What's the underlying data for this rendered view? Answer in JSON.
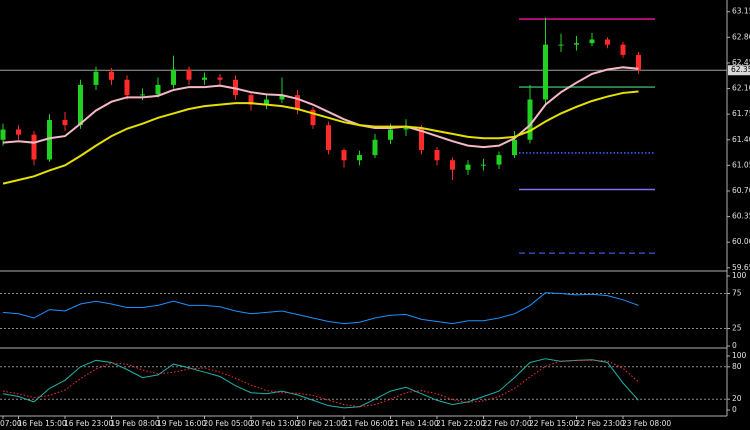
{
  "chart_data": [
    {
      "type": "candlestick",
      "categories": [
        "07:00",
        "16 Feb 15:00",
        null,
        null,
        "16 Feb 23:00",
        null,
        null,
        "19 Feb 08:00",
        null,
        null,
        "19 Feb 16:00",
        null,
        null,
        "20 Feb 05:00",
        null,
        null,
        "20 Feb 13:00",
        null,
        null,
        "20 Feb 21:00",
        null,
        null,
        "21 Feb 06:00",
        null,
        null,
        "21 Feb 14:00",
        null,
        null,
        "21 Feb 22:00",
        null,
        null,
        "22 Feb 07:00",
        null,
        null,
        "22 Feb 15:00",
        null,
        null,
        "22 Feb 23:00",
        null,
        null,
        "23 Feb 08:00",
        null
      ],
      "open": [
        61.4,
        61.54,
        61.47,
        61.13,
        61.67,
        61.6,
        62.15,
        62.33,
        62.22,
        62.01,
        62.02,
        62.15,
        62.36,
        62.22,
        62.25,
        62.22,
        62.01,
        61.88,
        61.95,
        62.01,
        61.81,
        61.6,
        61.26,
        61.12,
        61.19,
        61.4,
        61.54,
        61.56,
        61.26,
        61.12,
        60.99,
        61.06,
        61.06,
        61.19,
        61.4,
        61.95,
        62.7,
        62.7,
        62.72,
        62.77,
        62.7,
        62.56
      ],
      "high": [
        61.62,
        61.6,
        61.52,
        61.75,
        61.78,
        62.22,
        62.4,
        62.38,
        62.28,
        62.1,
        62.25,
        62.55,
        62.4,
        62.32,
        62.3,
        62.28,
        62.05,
        62.02,
        62.25,
        62.08,
        61.85,
        61.65,
        61.28,
        61.25,
        61.48,
        61.62,
        61.68,
        61.6,
        61.3,
        61.16,
        61.12,
        61.14,
        61.24,
        61.52,
        62.15,
        63.07,
        62.85,
        62.82,
        62.86,
        62.8,
        62.74,
        62.6
      ],
      "low": [
        61.32,
        61.4,
        61.05,
        61.1,
        61.52,
        61.55,
        62.08,
        62.15,
        61.95,
        61.94,
        61.98,
        62.1,
        62.15,
        62.15,
        62.12,
        61.95,
        61.8,
        61.82,
        61.9,
        61.75,
        61.55,
        61.2,
        61.02,
        61.05,
        61.15,
        61.34,
        61.45,
        61.2,
        61.05,
        60.85,
        60.92,
        60.98,
        61.0,
        61.15,
        61.35,
        61.88,
        62.6,
        62.62,
        62.68,
        62.65,
        62.52,
        62.3
      ],
      "close": [
        61.54,
        61.47,
        61.13,
        61.67,
        61.6,
        62.15,
        62.33,
        62.22,
        62.01,
        62.02,
        62.15,
        62.36,
        62.22,
        62.25,
        62.22,
        62.01,
        61.88,
        61.95,
        62.01,
        61.81,
        61.6,
        61.26,
        61.12,
        61.19,
        61.4,
        61.54,
        61.56,
        61.26,
        61.12,
        60.99,
        61.06,
        61.06,
        61.19,
        61.4,
        61.95,
        62.7,
        62.7,
        62.72,
        62.77,
        62.7,
        62.56,
        62.35
      ],
      "up_color": "#22d022",
      "down_color": "#ff2a2a",
      "overlays": [
        {
          "color": "#f5b8c4",
          "values": [
            61.36,
            61.38,
            61.36,
            61.42,
            61.45,
            61.62,
            61.8,
            61.92,
            61.98,
            61.98,
            62.0,
            62.08,
            62.12,
            62.12,
            62.14,
            62.1,
            62.05,
            62.02,
            62.01,
            61.96,
            61.88,
            61.78,
            61.68,
            61.6,
            61.56,
            61.56,
            61.58,
            61.52,
            61.45,
            61.38,
            61.32,
            61.3,
            61.32,
            61.42,
            61.6,
            61.88,
            62.05,
            62.18,
            62.3,
            62.36,
            62.39,
            62.37
          ]
        },
        {
          "color": "#e6e000",
          "values": [
            60.8,
            60.85,
            60.9,
            60.98,
            61.05,
            61.18,
            61.32,
            61.45,
            61.55,
            61.62,
            61.7,
            61.76,
            61.82,
            61.86,
            61.88,
            61.9,
            61.9,
            61.88,
            61.86,
            61.82,
            61.76,
            61.7,
            61.64,
            61.6,
            61.58,
            61.58,
            61.58,
            61.56,
            61.52,
            61.48,
            61.44,
            61.42,
            61.42,
            61.44,
            61.52,
            61.65,
            61.76,
            61.85,
            61.93,
            61.99,
            62.04,
            62.06
          ]
        }
      ],
      "levels": [
        {
          "value": 63.05,
          "color": "#d0108f",
          "style": "solid"
        },
        {
          "value": 62.12,
          "color": "#2e9b57",
          "style": "solid"
        },
        {
          "value": 61.22,
          "color": "#3060ff",
          "style": "dotted"
        },
        {
          "value": 60.72,
          "color": "#8a6cf0",
          "style": "solid"
        },
        {
          "value": 59.85,
          "color": "#2848a8",
          "style": "dashed"
        }
      ],
      "last_price": 62.35,
      "ylim": [
        59.62,
        63.31
      ],
      "yticks": [
        63.15,
        {
          "value": 62.8,
          "label": "62.80"
        },
        62.45,
        {
          "value": 62.1,
          "label": "62.10"
        },
        61.75,
        {
          "value": 61.4,
          "label": "61.40"
        },
        61.05,
        {
          "value": 60.7,
          "label": "60.70"
        },
        60.35,
        {
          "value": 60,
          "label": "60.00"
        },
        59.65
      ]
    },
    {
      "type": "line",
      "color": "#1e90ff",
      "values": [
        48,
        46,
        40,
        52,
        50,
        60,
        64,
        60,
        55,
        55,
        58,
        64,
        58,
        58,
        56,
        50,
        46,
        48,
        50,
        45,
        40,
        35,
        32,
        34,
        40,
        44,
        45,
        38,
        35,
        32,
        36,
        36,
        40,
        46,
        58,
        76,
        75,
        73,
        74,
        72,
        66,
        58
      ],
      "levels": [
        75,
        25
      ],
      "ylim": [
        0,
        100
      ],
      "yticks": [
        100,
        75,
        25,
        0
      ]
    },
    {
      "type": "line",
      "series": [
        {
          "color": "#20b2aa",
          "style": "solid",
          "values": [
            30,
            25,
            15,
            40,
            55,
            80,
            92,
            88,
            75,
            60,
            65,
            85,
            78,
            70,
            62,
            45,
            32,
            30,
            35,
            28,
            18,
            8,
            4,
            6,
            20,
            35,
            42,
            30,
            18,
            10,
            15,
            25,
            35,
            60,
            88,
            95,
            90,
            92,
            93,
            88,
            50,
            18
          ]
        },
        {
          "color": "#ff3030",
          "style": "dotted",
          "values": [
            35,
            30,
            23,
            27,
            37,
            58,
            76,
            87,
            85,
            74,
            67,
            70,
            76,
            78,
            70,
            59,
            46,
            36,
            32,
            31,
            27,
            18,
            10,
            6,
            10,
            20,
            32,
            36,
            30,
            19,
            14,
            17,
            25,
            40,
            61,
            81,
            91,
            92,
            92,
            91,
            77,
            52
          ]
        }
      ],
      "levels": [
        80,
        20
      ],
      "ylim": [
        0,
        100
      ],
      "yticks": [
        100,
        80,
        20,
        0
      ]
    }
  ]
}
